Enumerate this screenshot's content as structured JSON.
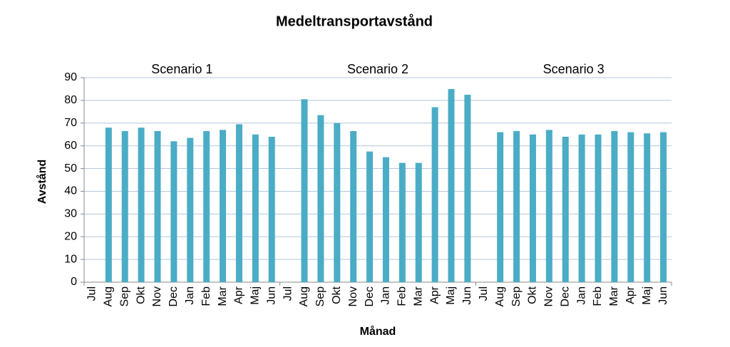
{
  "chart_data": {
    "type": "bar",
    "title": "Medeltransportavstånd",
    "x_label": "Månad",
    "y_label": "Avstånd",
    "categories": [
      "Jul",
      "Aug",
      "Sep",
      "Okt",
      "Nov",
      "Dec",
      "Jan",
      "Feb",
      "Mar",
      "Apr",
      "Maj",
      "Jun"
    ],
    "panels": [
      {
        "title": "Scenario 1",
        "values": [
          null,
          68,
          66.5,
          68,
          66.5,
          62,
          63.5,
          66.5,
          67,
          69.5,
          65,
          64
        ]
      },
      {
        "title": "Scenario 2",
        "values": [
          null,
          80.5,
          73.5,
          70,
          66.5,
          57.5,
          55,
          52.5,
          52.5,
          77,
          85,
          82.5
        ]
      },
      {
        "title": "Scenario 3",
        "values": [
          null,
          66,
          66.5,
          65,
          67,
          64,
          65,
          65,
          66.5,
          66,
          65.5,
          66
        ]
      }
    ],
    "color": "#4bacc6",
    "ylim": [
      0,
      90
    ],
    "yticks": [
      0,
      10,
      20,
      30,
      40,
      50,
      60,
      70,
      80,
      90
    ],
    "grid": true
  }
}
